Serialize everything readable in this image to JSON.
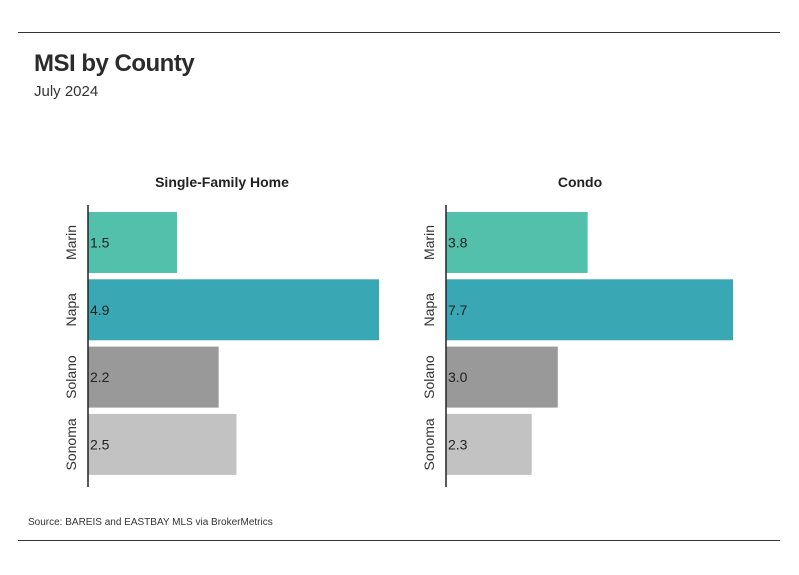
{
  "title": "MSI by County",
  "subtitle": "July 2024",
  "source": "Source:  BAREIS and EASTBAY MLS via BrokerMetrics",
  "chart_data": [
    {
      "type": "bar",
      "orientation": "horizontal",
      "title": "Single-Family Home",
      "categories": [
        "Marin",
        "Napa",
        "Solano",
        "Sonoma"
      ],
      "values": [
        1.5,
        4.9,
        2.2,
        2.5
      ],
      "colors": [
        "#52c0aa",
        "#3aa8b4",
        "#999999",
        "#c2c2c2"
      ],
      "xlim": [
        0,
        4.9
      ],
      "grid": false,
      "legend": "none"
    },
    {
      "type": "bar",
      "orientation": "horizontal",
      "title": "Condo",
      "categories": [
        "Marin",
        "Napa",
        "Solano",
        "Sonoma"
      ],
      "values": [
        3.8,
        7.7,
        3.0,
        2.3
      ],
      "colors": [
        "#52c0aa",
        "#3aa8b4",
        "#999999",
        "#c2c2c2"
      ],
      "xlim": [
        0,
        7.7
      ],
      "grid": false,
      "legend": "none"
    }
  ]
}
